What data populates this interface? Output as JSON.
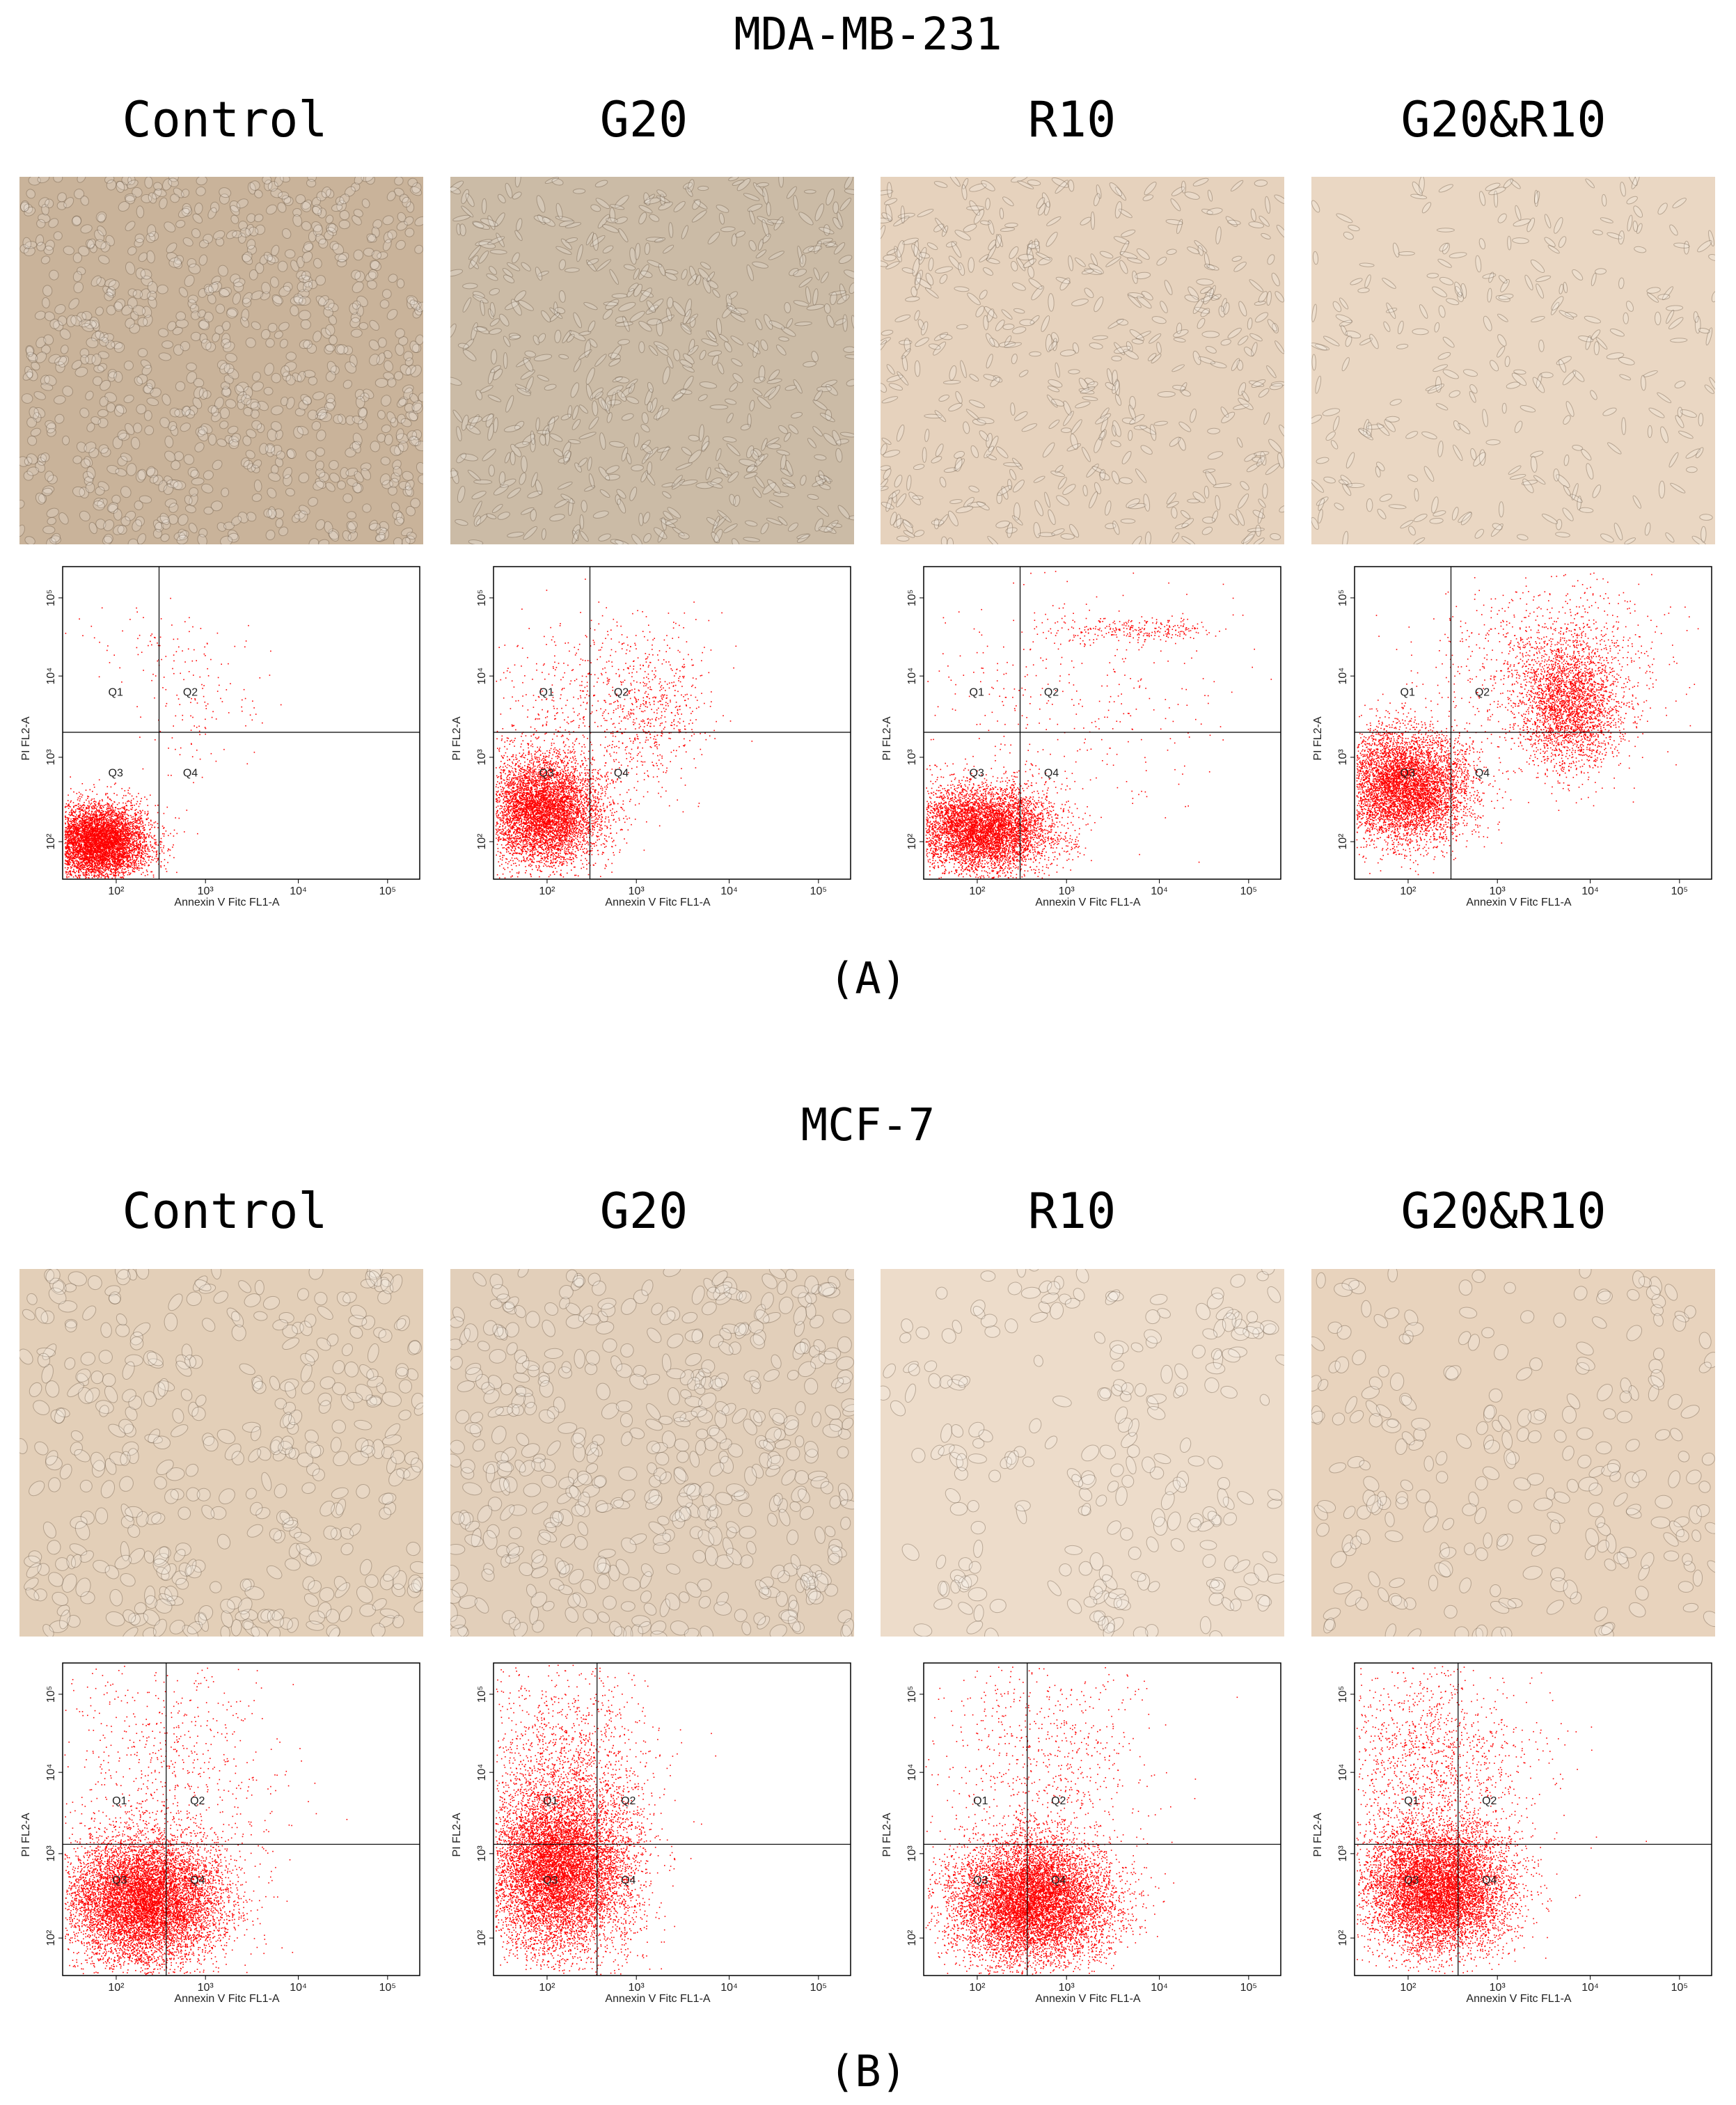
{
  "sections": [
    {
      "title": "MDA-MB-231",
      "panel_label": "(A)",
      "columns": [
        {
          "label": "Control",
          "image": {
            "name": "micrograph-mda-control",
            "tint": "#c9b39a",
            "density": 900,
            "style": "dense"
          },
          "flow": {
            "scatter": "mda-control"
          }
        },
        {
          "label": "G20",
          "image": {
            "name": "micrograph-mda-g20",
            "tint": "#cbbba6",
            "density": 620,
            "style": "spindle"
          },
          "flow": {
            "scatter": "mda-g20"
          }
        },
        {
          "label": "R10",
          "image": {
            "name": "micrograph-mda-r10",
            "tint": "#e6d2bd",
            "density": 520,
            "style": "spindle"
          },
          "flow": {
            "scatter": "mda-r10"
          }
        },
        {
          "label": "G20&R10",
          "image": {
            "name": "micrograph-mda-g20r10",
            "tint": "#ead7c3",
            "density": 300,
            "style": "spindle"
          },
          "flow": {
            "scatter": "mda-g20r10"
          }
        }
      ]
    },
    {
      "title": "MCF-7",
      "panel_label": "(B)",
      "columns": [
        {
          "label": "Control",
          "image": {
            "name": "micrograph-mcf-control",
            "tint": "#e3cfb8",
            "density": 420,
            "style": "cluster"
          },
          "flow": {
            "scatter": "mcf-control"
          }
        },
        {
          "label": "G20",
          "image": {
            "name": "micrograph-mcf-g20",
            "tint": "#e2cfba",
            "density": 520,
            "style": "cluster"
          },
          "flow": {
            "scatter": "mcf-g20"
          }
        },
        {
          "label": "R10",
          "image": {
            "name": "micrograph-mcf-r10",
            "tint": "#eddcca",
            "density": 260,
            "style": "islands"
          },
          "flow": {
            "scatter": "mcf-r10"
          }
        },
        {
          "label": "G20&R10",
          "image": {
            "name": "micrograph-mcf-g20r10",
            "tint": "#e8d3bd",
            "density": 260,
            "style": "sparse"
          },
          "flow": {
            "scatter": "mcf-g20r10"
          }
        }
      ]
    }
  ],
  "flow_axes": {
    "xlabel": "Annexin V Fitc FL1-A",
    "ylabel": "PI FL2-A",
    "x_ticks": [
      "10²",
      "10³",
      "10⁴",
      "10⁵"
    ],
    "y_ticks": [
      "10²",
      "10³",
      "10⁴",
      "10⁵"
    ],
    "quadrants": [
      "Q1",
      "Q2",
      "Q3",
      "Q4"
    ],
    "dot_color": "#ff0000",
    "scale": "log"
  }
}
